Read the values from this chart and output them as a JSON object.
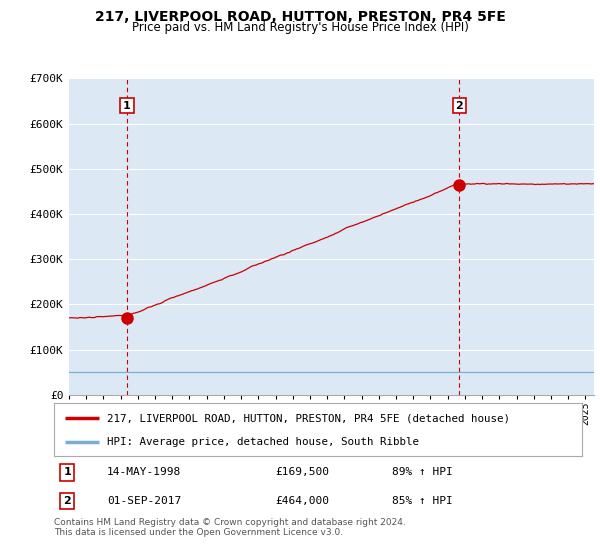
{
  "title": "217, LIVERPOOL ROAD, HUTTON, PRESTON, PR4 5FE",
  "subtitle": "Price paid vs. HM Land Registry's House Price Index (HPI)",
  "ylim": [
    0,
    700000
  ],
  "yticks": [
    0,
    100000,
    200000,
    300000,
    400000,
    500000,
    600000,
    700000
  ],
  "ytick_labels": [
    "£0",
    "£100K",
    "£200K",
    "£300K",
    "£400K",
    "£500K",
    "£600K",
    "£700K"
  ],
  "x_start_year": 1995,
  "x_end_year": 2025,
  "sale1_year": 1998.37,
  "sale1_price": 169500,
  "sale2_year": 2017.67,
  "sale2_price": 464000,
  "legend_line1": "217, LIVERPOOL ROAD, HUTTON, PRESTON, PR4 5FE (detached house)",
  "legend_line2": "HPI: Average price, detached house, South Ribble",
  "row1_num": "1",
  "row1_date": "14-MAY-1998",
  "row1_price": "£169,500",
  "row1_hpi": "89% ↑ HPI",
  "row2_num": "2",
  "row2_date": "01-SEP-2017",
  "row2_price": "£464,000",
  "row2_hpi": "85% ↑ HPI",
  "footer": "Contains HM Land Registry data © Crown copyright and database right 2024.\nThis data is licensed under the Open Government Licence v3.0.",
  "hpi_color": "#7aadd4",
  "price_color": "#cc0000",
  "vline_color": "#cc0000",
  "plot_bg_color": "#dce9f5",
  "fig_bg_color": "#ffffff",
  "grid_color": "#ffffff",
  "label_box_edge": "#cc0000"
}
